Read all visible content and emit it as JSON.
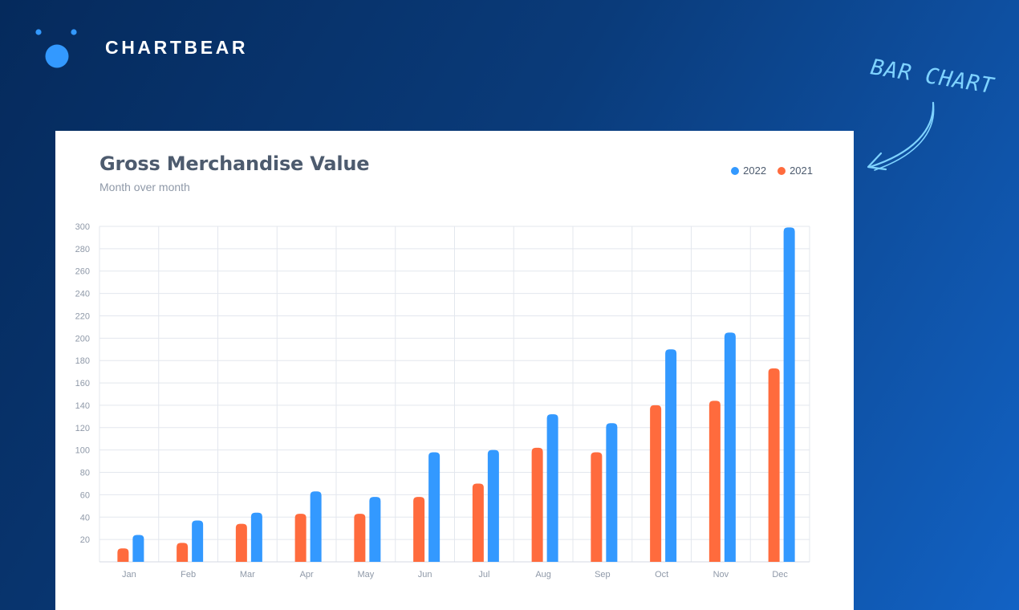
{
  "brand": {
    "name": "CHARTBEAR",
    "accent": "#3399ff"
  },
  "annotation": {
    "text": "BAR CHART",
    "color": "#7fd3ff"
  },
  "chart_data": {
    "type": "bar",
    "title": "Gross Merchandise Value",
    "subtitle": "Month over month",
    "categories": [
      "Jan",
      "Feb",
      "Mar",
      "Apr",
      "May",
      "Jun",
      "Jul",
      "Aug",
      "Sep",
      "Oct",
      "Nov",
      "Dec"
    ],
    "series": [
      {
        "name": "2021",
        "color": "#ff6b3d",
        "values": [
          12,
          17,
          34,
          43,
          43,
          58,
          70,
          102,
          98,
          140,
          144,
          173
        ]
      },
      {
        "name": "2022",
        "color": "#3399ff",
        "values": [
          24,
          37,
          44,
          63,
          58,
          98,
          100,
          132,
          124,
          190,
          205,
          299
        ]
      }
    ],
    "legend_order": [
      "2022",
      "2021"
    ],
    "yticks": [
      20,
      40,
      60,
      80,
      100,
      120,
      140,
      160,
      180,
      200,
      220,
      240,
      260,
      280,
      300
    ],
    "ylim": [
      0,
      300
    ],
    "xlabel": "",
    "ylabel": "",
    "grid": true,
    "legend_position": "top-right"
  }
}
